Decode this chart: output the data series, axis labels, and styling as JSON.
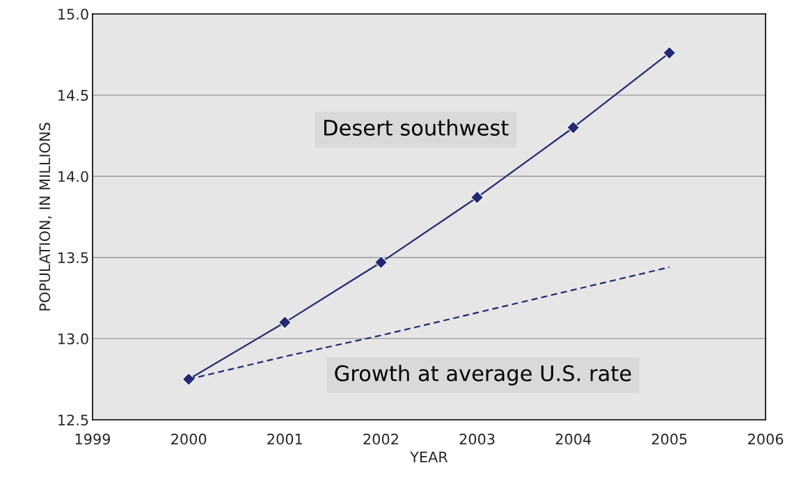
{
  "chart_data": {
    "type": "line",
    "xlabel": "YEAR",
    "ylabel": "POPULATION, IN MILLIONS",
    "x": [
      2000,
      2001,
      2002,
      2003,
      2004,
      2005
    ],
    "series": [
      {
        "name": "Desert southwest",
        "color": "#232a73",
        "marker": "diamond",
        "line_style": "solid",
        "values": [
          12.75,
          13.1,
          13.47,
          13.87,
          14.3,
          14.76
        ]
      },
      {
        "name": "Growth at average U.S. rate",
        "color": "#232a73",
        "marker": "none",
        "line_style": "dashed",
        "values": [
          12.75,
          12.89,
          13.02,
          13.16,
          13.3,
          13.44
        ]
      }
    ],
    "xlim": [
      1999,
      2006
    ],
    "xticks": [
      1999,
      2000,
      2001,
      2002,
      2003,
      2004,
      2005,
      2006
    ],
    "ylim": [
      12.5,
      15.0
    ],
    "yticks": [
      {
        "value": 12.5,
        "label": "12.5"
      },
      {
        "value": 13.0,
        "label": "13.0"
      },
      {
        "value": 13.5,
        "label": "13.5"
      },
      {
        "value": 14.0,
        "label": "14.0"
      },
      {
        "value": 14.5,
        "label": "14.5"
      },
      {
        "value": 15.0,
        "label": "15.0"
      }
    ],
    "grid": "y"
  }
}
